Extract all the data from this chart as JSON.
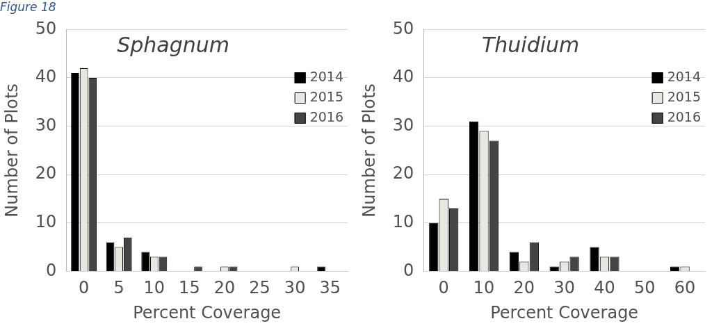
{
  "chart_data": [
    {
      "type": "bar",
      "title": "Sphagnum",
      "xlabel": "Percent Coverage",
      "ylabel": "Number of Plots",
      "annotations": [
        "Figure 18"
      ],
      "categories": [
        "0",
        "5",
        "10",
        "15",
        "20",
        "25",
        "30",
        "35"
      ],
      "series": [
        {
          "name": "2014",
          "color": "#000000",
          "values": [
            41,
            6,
            4,
            0,
            0,
            0,
            0,
            1
          ]
        },
        {
          "name": "2015",
          "color": "#e8e8e0",
          "values": [
            42,
            5,
            3,
            0,
            1,
            0,
            1,
            0
          ]
        },
        {
          "name": "2016",
          "color": "#444444",
          "values": [
            40,
            7,
            3,
            1,
            1,
            0,
            0,
            0
          ]
        }
      ],
      "ylim": [
        0,
        50
      ],
      "yticks": [
        0,
        10,
        20,
        30,
        40,
        50
      ],
      "grid": "y",
      "legend": "top right"
    },
    {
      "type": "bar",
      "title": "Thuidium",
      "xlabel": "Percent Coverage",
      "ylabel": "Number of Plots",
      "categories": [
        "0",
        "10",
        "20",
        "30",
        "40",
        "50",
        "60"
      ],
      "series": [
        {
          "name": "2014",
          "color": "#000000",
          "values": [
            10,
            31,
            4,
            1,
            5,
            0,
            1
          ]
        },
        {
          "name": "2015",
          "color": "#e8e8e0",
          "values": [
            15,
            29,
            2,
            2,
            3,
            0,
            1
          ]
        },
        {
          "name": "2016",
          "color": "#444444",
          "values": [
            13,
            27,
            6,
            3,
            3,
            0,
            0
          ]
        }
      ],
      "ylim": [
        0,
        50
      ],
      "yticks": [
        0,
        10,
        20,
        30,
        40,
        50
      ],
      "grid": "y",
      "legend": "top right"
    }
  ]
}
